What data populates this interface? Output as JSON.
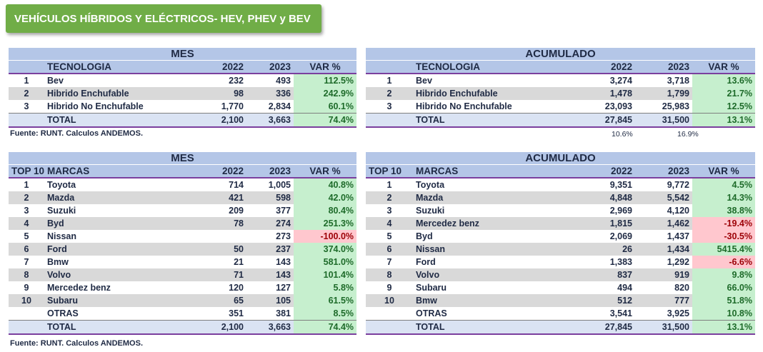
{
  "title": "VEHÍCULOS HÍBRIDOS Y ELÉCTRICOS- HEV, PHEV y BEV",
  "tech_mes": {
    "section": "MES",
    "headers": [
      "",
      "TECNOLOGIA",
      "2022",
      "2023",
      "VAR %"
    ],
    "rows": [
      {
        "rank": "1",
        "name": "Bev",
        "y2022": "232",
        "y2023": "493",
        "var": "112.5%"
      },
      {
        "rank": "2",
        "name": "Hibrido Enchufable",
        "y2022": "98",
        "y2023": "336",
        "var": "242.9%"
      },
      {
        "rank": "3",
        "name": "Hibrido No Enchufable",
        "y2022": "1,770",
        "y2023": "2,834",
        "var": "60.1%"
      }
    ],
    "total": {
      "rank": "",
      "name": "TOTAL",
      "y2022": "2,100",
      "y2023": "3,663",
      "var": "74.4%"
    }
  },
  "tech_acum": {
    "section": "ACUMULADO",
    "headers": [
      "",
      "TECNOLOGIA",
      "2022",
      "2023",
      "VAR %"
    ],
    "rows": [
      {
        "rank": "1",
        "name": "Bev",
        "y2022": "3,274",
        "y2023": "3,718",
        "var": "13.6%"
      },
      {
        "rank": "2",
        "name": "Hibrido Enchufable",
        "y2022": "1,478",
        "y2023": "1,799",
        "var": "21.7%"
      },
      {
        "rank": "3",
        "name": "Hibrido No Enchufable",
        "y2022": "23,093",
        "y2023": "25,983",
        "var": "12.5%"
      }
    ],
    "total": {
      "rank": "",
      "name": "TOTAL",
      "y2022": "27,845",
      "y2023": "31,500",
      "var": "13.1%"
    },
    "share_2022": "10.6%",
    "share_2023": "16.9%"
  },
  "source_1": "Fuente: RUNT. Calculos ANDEMOS.",
  "brand_mes": {
    "section": "MES",
    "headers": [
      "TOP 10",
      "MARCAS",
      "2022",
      "2023",
      "VAR %"
    ],
    "rows": [
      {
        "rank": "1",
        "name": "Toyota",
        "y2022": "714",
        "y2023": "1,005",
        "var": "40.8%",
        "neg": false
      },
      {
        "rank": "2",
        "name": "Mazda",
        "y2022": "421",
        "y2023": "598",
        "var": "42.0%",
        "neg": false
      },
      {
        "rank": "3",
        "name": "Suzuki",
        "y2022": "209",
        "y2023": "377",
        "var": "80.4%",
        "neg": false
      },
      {
        "rank": "4",
        "name": "Byd",
        "y2022": "78",
        "y2023": "274",
        "var": "251.3%",
        "neg": false
      },
      {
        "rank": "5",
        "name": "Nissan",
        "y2022": "",
        "y2023": "273",
        "var": "-100.0%",
        "neg": true
      },
      {
        "rank": "6",
        "name": "Ford",
        "y2022": "50",
        "y2023": "237",
        "var": "374.0%",
        "neg": false
      },
      {
        "rank": "7",
        "name": "Bmw",
        "y2022": "21",
        "y2023": "143",
        "var": "581.0%",
        "neg": false
      },
      {
        "rank": "8",
        "name": "Volvo",
        "y2022": "71",
        "y2023": "143",
        "var": "101.4%",
        "neg": false
      },
      {
        "rank": "9",
        "name": "Mercedez benz",
        "y2022": "120",
        "y2023": "127",
        "var": "5.8%",
        "neg": false
      },
      {
        "rank": "10",
        "name": "Subaru",
        "y2022": "65",
        "y2023": "105",
        "var": "61.5%",
        "neg": false
      },
      {
        "rank": "",
        "name": "OTRAS",
        "y2022": "351",
        "y2023": "381",
        "var": "8.5%",
        "neg": false
      }
    ],
    "total": {
      "rank": "",
      "name": "TOTAL",
      "y2022": "2,100",
      "y2023": "3,663",
      "var": "74.4%"
    }
  },
  "brand_acum": {
    "section": "ACUMULADO",
    "headers": [
      "TOP 10",
      "MARCAS",
      "2022",
      "2023",
      "VAR %"
    ],
    "rows": [
      {
        "rank": "1",
        "name": "Toyota",
        "y2022": "9,351",
        "y2023": "9,772",
        "var": "4.5%",
        "neg": false
      },
      {
        "rank": "2",
        "name": "Mazda",
        "y2022": "4,848",
        "y2023": "5,542",
        "var": "14.3%",
        "neg": false
      },
      {
        "rank": "3",
        "name": "Suzuki",
        "y2022": "2,969",
        "y2023": "4,120",
        "var": "38.8%",
        "neg": false
      },
      {
        "rank": "4",
        "name": "Mercedez benz",
        "y2022": "1,815",
        "y2023": "1,462",
        "var": "-19.4%",
        "neg": true
      },
      {
        "rank": "5",
        "name": "Byd",
        "y2022": "2,069",
        "y2023": "1,437",
        "var": "-30.5%",
        "neg": true
      },
      {
        "rank": "6",
        "name": "Nissan",
        "y2022": "26",
        "y2023": "1,434",
        "var": "5415.4%",
        "neg": false
      },
      {
        "rank": "7",
        "name": "Ford",
        "y2022": "1,383",
        "y2023": "1,292",
        "var": "-6.6%",
        "neg": true
      },
      {
        "rank": "8",
        "name": "Volvo",
        "y2022": "837",
        "y2023": "919",
        "var": "9.8%",
        "neg": false
      },
      {
        "rank": "9",
        "name": "Subaru",
        "y2022": "494",
        "y2023": "820",
        "var": "66.0%",
        "neg": false
      },
      {
        "rank": "10",
        "name": "Bmw",
        "y2022": "512",
        "y2023": "777",
        "var": "51.8%",
        "neg": false
      },
      {
        "rank": "",
        "name": "OTRAS",
        "y2022": "3,541",
        "y2023": "3,925",
        "var": "10.8%",
        "neg": false
      }
    ],
    "total": {
      "rank": "",
      "name": "TOTAL",
      "y2022": "27,845",
      "y2023": "31,500",
      "var": "13.1%"
    }
  },
  "source_2": "Fuente: RUNT. Calculos ANDEMOS."
}
